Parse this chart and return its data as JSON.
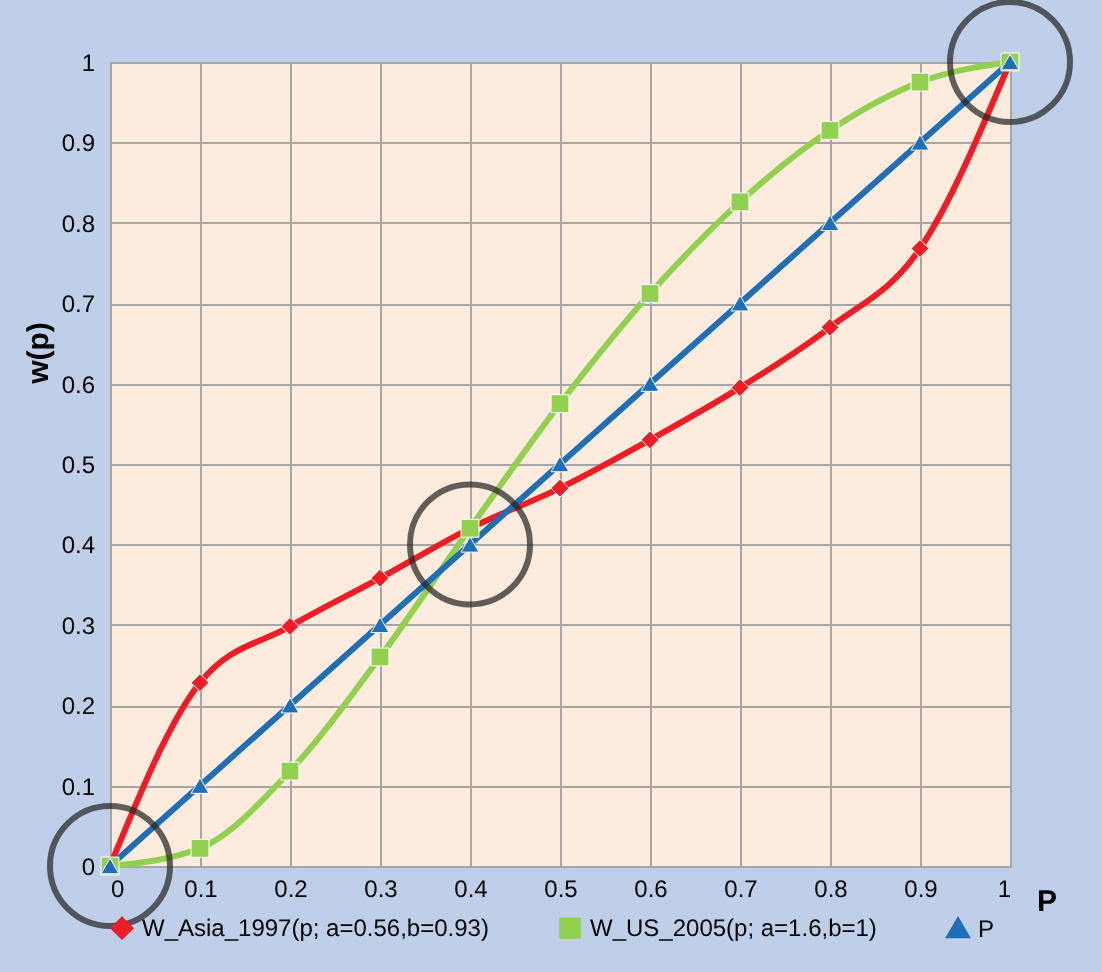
{
  "chart_data": {
    "type": "line",
    "xlabel": "P",
    "ylabel": "w(p)",
    "x": [
      0,
      0.1,
      0.2,
      0.3,
      0.4,
      0.5,
      0.6,
      0.7,
      0.8,
      0.9,
      1
    ],
    "xlim": [
      0,
      1
    ],
    "xticks": [
      0,
      0.1,
      0.2,
      0.3,
      0.4,
      0.5,
      0.6,
      0.7,
      0.8,
      0.9,
      1
    ],
    "ylim": [
      0,
      1
    ],
    "yticks": [
      0,
      0.1,
      0.2,
      0.3,
      0.4,
      0.5,
      0.6,
      0.7,
      0.8,
      0.9,
      1
    ],
    "grid": true,
    "legend": "bottom",
    "line_style": "solid",
    "series": [
      {
        "name": "W_Asia_1997(p; a=0.56,b=0.93)",
        "color": "#ee1c25",
        "marker": "diamond",
        "values": [
          0,
          0.228,
          0.298,
          0.358,
          0.42,
          0.47,
          0.53,
          0.595,
          0.67,
          0.768,
          1
        ]
      },
      {
        "name": "W_US_2005(p; a=1.6,b=1)",
        "color": "#92d050",
        "marker": "square",
        "values": [
          0,
          0.022,
          0.118,
          0.26,
          0.42,
          0.575,
          0.712,
          0.826,
          0.915,
          0.975,
          1
        ]
      },
      {
        "name": "P",
        "color": "#1f6fb8",
        "marker": "triangle",
        "values": [
          0,
          0.1,
          0.2,
          0.3,
          0.4,
          0.5,
          0.6,
          0.7,
          0.8,
          0.9,
          1
        ]
      }
    ]
  }
}
